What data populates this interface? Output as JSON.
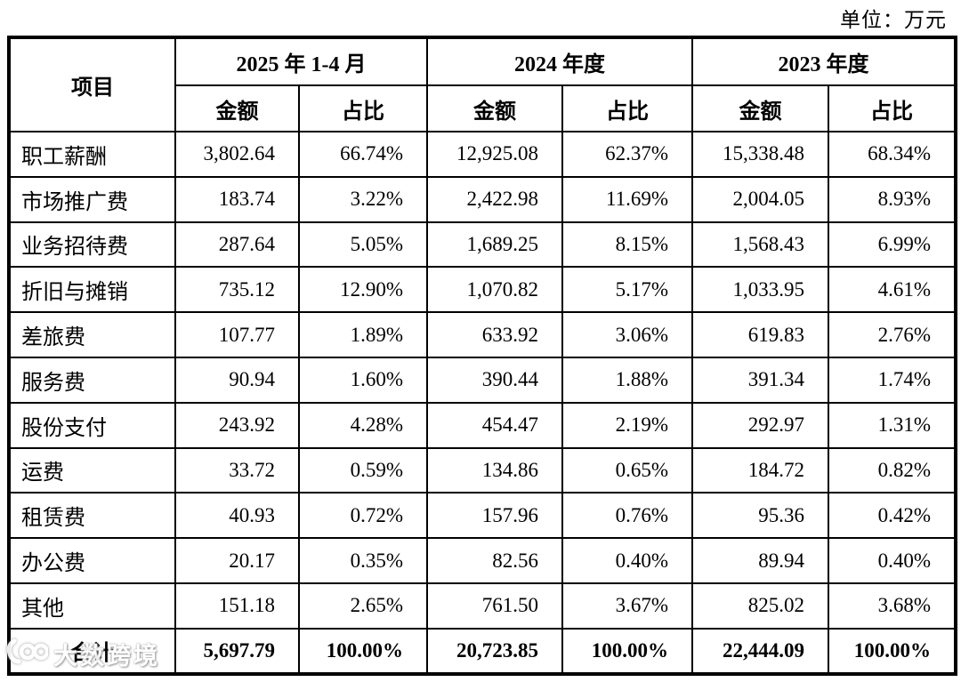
{
  "unit_label": "单位：万元",
  "watermark": {
    "text": "大数跨境"
  },
  "table": {
    "item_header": "项目",
    "period_headers": [
      "2025 年 1-4 月",
      "2024 年度",
      "2023 年度"
    ],
    "sub_headers": {
      "amount": "金额",
      "ratio": "占比"
    },
    "rows": [
      {
        "item": "职工薪酬",
        "cells": [
          "3,802.64",
          "66.74%",
          "12,925.08",
          "62.37%",
          "15,338.48",
          "68.34%"
        ]
      },
      {
        "item": "市场推广费",
        "cells": [
          "183.74",
          "3.22%",
          "2,422.98",
          "11.69%",
          "2,004.05",
          "8.93%"
        ]
      },
      {
        "item": "业务招待费",
        "cells": [
          "287.64",
          "5.05%",
          "1,689.25",
          "8.15%",
          "1,568.43",
          "6.99%"
        ]
      },
      {
        "item": "折旧与摊销",
        "cells": [
          "735.12",
          "12.90%",
          "1,070.82",
          "5.17%",
          "1,033.95",
          "4.61%"
        ]
      },
      {
        "item": "差旅费",
        "cells": [
          "107.77",
          "1.89%",
          "633.92",
          "3.06%",
          "619.83",
          "2.76%"
        ]
      },
      {
        "item": "服务费",
        "cells": [
          "90.94",
          "1.60%",
          "390.44",
          "1.88%",
          "391.34",
          "1.74%"
        ]
      },
      {
        "item": "股份支付",
        "cells": [
          "243.92",
          "4.28%",
          "454.47",
          "2.19%",
          "292.97",
          "1.31%"
        ]
      },
      {
        "item": "运费",
        "cells": [
          "33.72",
          "0.59%",
          "134.86",
          "0.65%",
          "184.72",
          "0.82%"
        ]
      },
      {
        "item": "租赁费",
        "cells": [
          "40.93",
          "0.72%",
          "157.96",
          "0.76%",
          "95.36",
          "0.42%"
        ]
      },
      {
        "item": "办公费",
        "cells": [
          "20.17",
          "0.35%",
          "82.56",
          "0.40%",
          "89.94",
          "0.40%"
        ]
      },
      {
        "item": "其他",
        "cells": [
          "151.18",
          "2.65%",
          "761.50",
          "3.67%",
          "825.02",
          "3.68%"
        ]
      }
    ],
    "total_row": {
      "item": "合计",
      "cells": [
        "5,697.79",
        "100.00%",
        "20,723.85",
        "100.00%",
        "22,444.09",
        "100.00%"
      ]
    }
  }
}
